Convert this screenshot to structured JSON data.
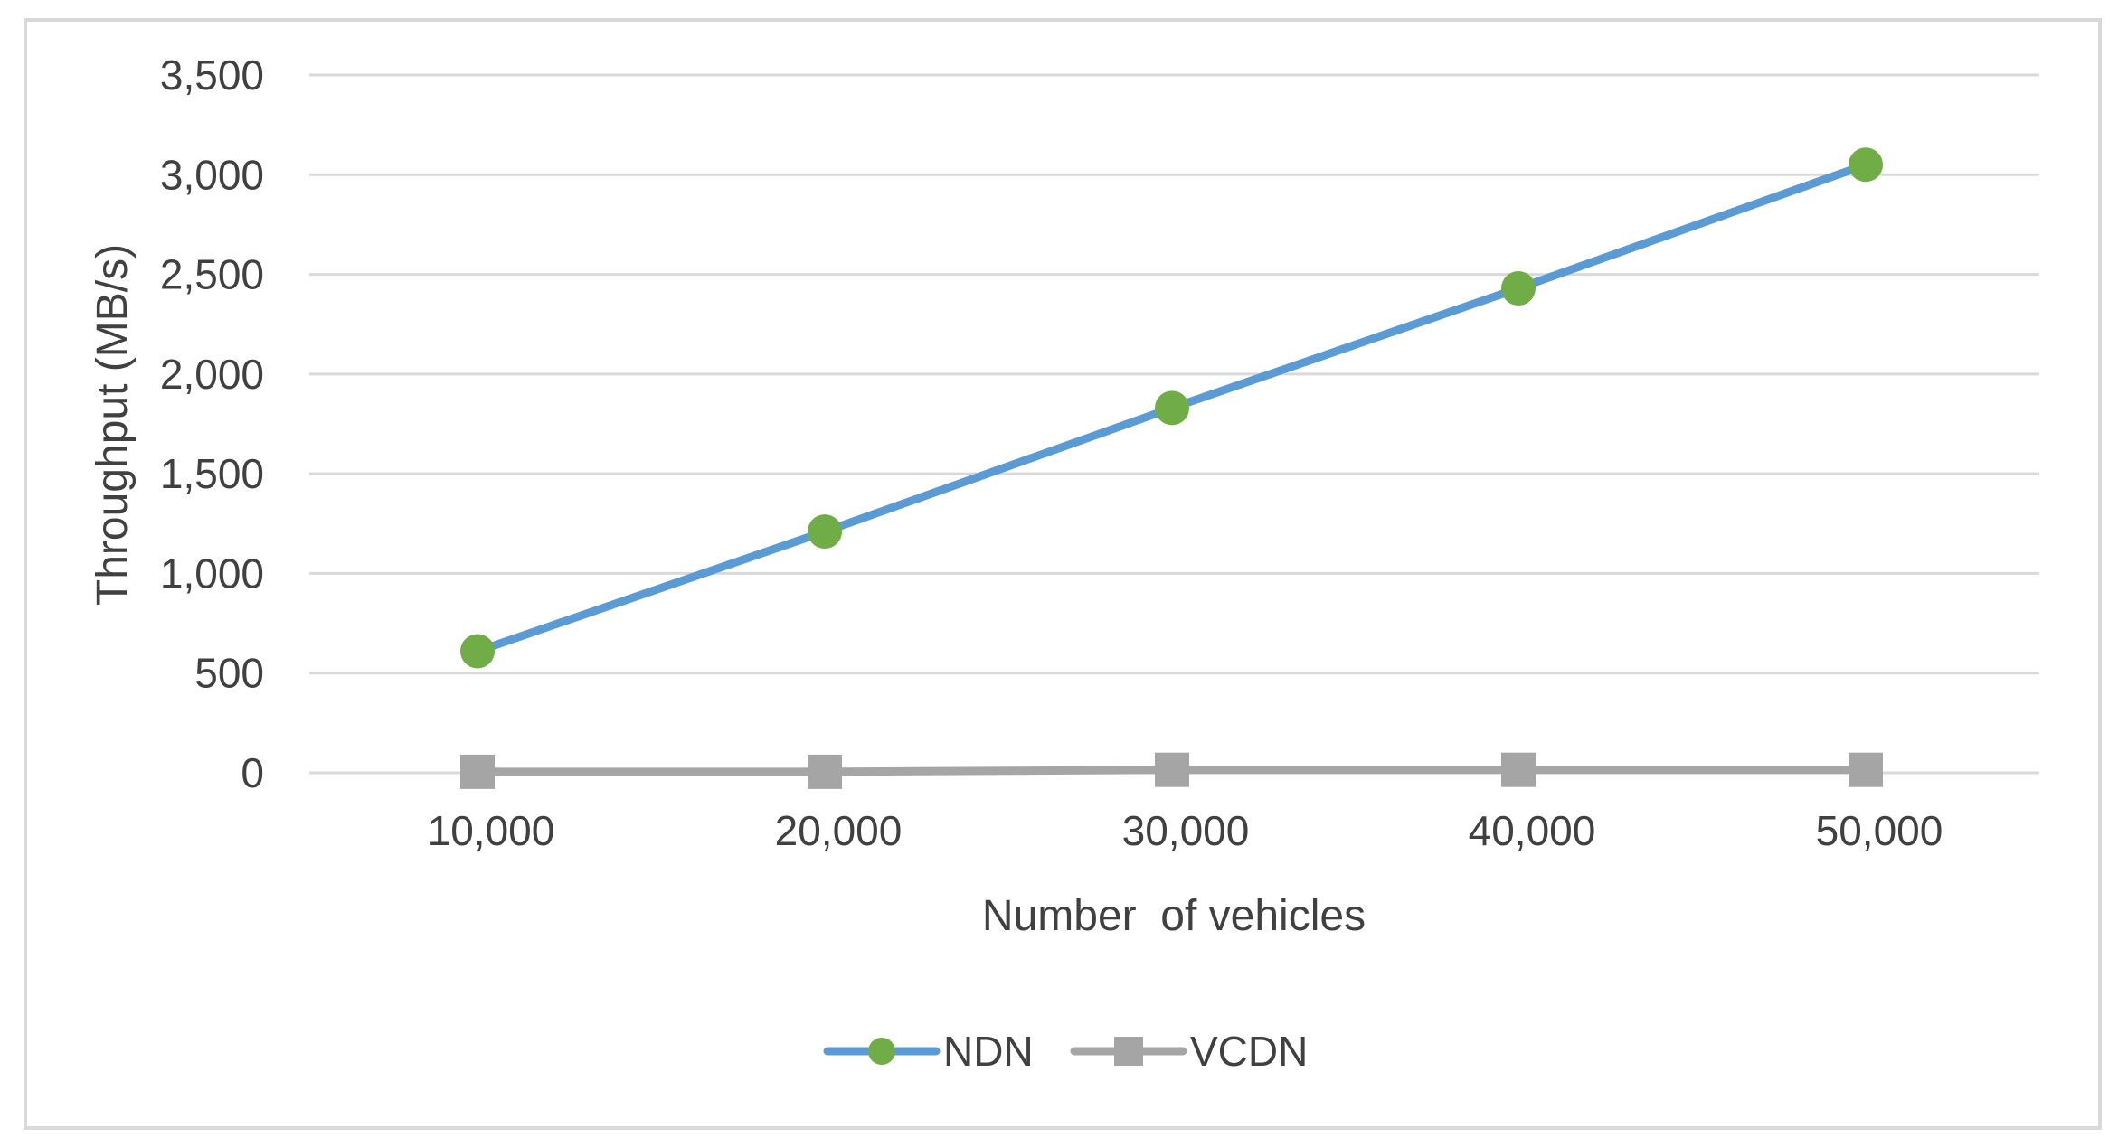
{
  "chart_data": {
    "type": "line",
    "title": "",
    "xlabel": "Number  of vehicles",
    "ylabel": "Throughput (MB/s)",
    "categories": [
      "10,000",
      "20,000",
      "30,000",
      "40,000",
      "50,000"
    ],
    "ylim": [
      0,
      3500
    ],
    "yticks": [
      0,
      500,
      1000,
      1500,
      2000,
      2500,
      3000,
      3500
    ],
    "ytick_labels": [
      "0",
      "500",
      "1,000",
      "1,500",
      "2,000",
      "2,500",
      "3,000",
      "3,500"
    ],
    "grid": true,
    "legend_position": "bottom",
    "series": [
      {
        "name": "NDN",
        "values": [
          610,
          1210,
          1830,
          2430,
          3050
        ],
        "line_color": "#5b9bd5",
        "marker": "circle",
        "marker_color": "#70ad47"
      },
      {
        "name": "VCDN",
        "values": [
          5,
          5,
          15,
          15,
          15
        ],
        "line_color": "#a5a5a5",
        "marker": "square",
        "marker_color": "#a5a5a5"
      }
    ]
  }
}
